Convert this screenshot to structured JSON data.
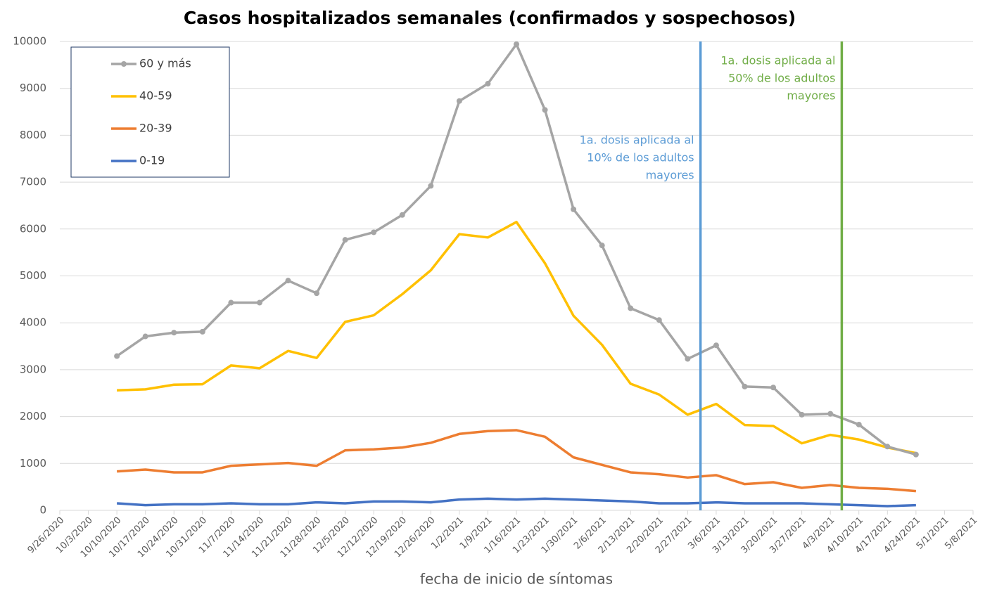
{
  "chart_data": {
    "type": "line",
    "title": "Casos hospitalizados semanales (confirmados y sospechosos)",
    "x_label": "fecha de inicio de síntomas",
    "categories": [
      "9/26/2020",
      "10/3/2020",
      "10/10/2020",
      "10/17/2020",
      "10/24/2020",
      "10/31/2020",
      "11/7/2020",
      "11/14/2020",
      "11/21/2020",
      "11/28/2020",
      "12/5/2020",
      "12/12/2020",
      "12/19/2020",
      "12/26/2020",
      "1/2/2021",
      "1/9/2021",
      "1/16/2021",
      "1/23/2021",
      "1/30/2021",
      "2/6/2021",
      "2/13/2021",
      "2/20/2021",
      "2/27/2021",
      "3/6/2021",
      "3/13/2021",
      "3/20/2021",
      "3/27/2021",
      "4/3/2021",
      "4/10/2021",
      "4/17/2021",
      "4/24/2021",
      "5/1/2021",
      "5/8/2021"
    ],
    "series": [
      {
        "name": "60 y más",
        "color": "#a5a5a5",
        "marker": true,
        "values": [
          null,
          null,
          3290,
          3710,
          3790,
          3810,
          4430,
          4430,
          4900,
          4630,
          5770,
          5930,
          6300,
          6920,
          8730,
          9100,
          9940,
          8540,
          6420,
          5650,
          4310,
          4060,
          3230,
          3520,
          2640,
          2620,
          2040,
          2060,
          1830,
          1360,
          1190,
          null,
          null
        ]
      },
      {
        "name": "40-59",
        "color": "#ffc000",
        "marker": false,
        "values": [
          null,
          null,
          2560,
          2580,
          2680,
          2690,
          3090,
          3030,
          3400,
          3250,
          4020,
          4160,
          4610,
          5120,
          5890,
          5820,
          6150,
          5270,
          4150,
          3530,
          2700,
          2470,
          2040,
          2270,
          1820,
          1800,
          1430,
          1610,
          1510,
          1340,
          1220,
          null,
          null
        ]
      },
      {
        "name": "20-39",
        "color": "#ed7d31",
        "marker": false,
        "values": [
          null,
          null,
          830,
          870,
          810,
          810,
          950,
          980,
          1010,
          950,
          1280,
          1300,
          1340,
          1440,
          1630,
          1690,
          1710,
          1570,
          1130,
          970,
          810,
          770,
          700,
          750,
          560,
          600,
          480,
          540,
          480,
          460,
          410,
          null,
          null
        ]
      },
      {
        "name": "0-19",
        "color": "#4472c4",
        "marker": false,
        "values": [
          null,
          null,
          150,
          110,
          130,
          130,
          150,
          130,
          130,
          170,
          150,
          190,
          190,
          170,
          230,
          250,
          230,
          250,
          230,
          210,
          190,
          150,
          150,
          170,
          150,
          150,
          150,
          130,
          110,
          90,
          110,
          null,
          null
        ]
      }
    ],
    "ylim": [
      0,
      10000
    ],
    "yticks": [
      0,
      1000,
      2000,
      3000,
      4000,
      5000,
      6000,
      7000,
      8000,
      9000,
      10000
    ],
    "grid": true,
    "legend": "upper left",
    "vlines": [
      {
        "x": 22.45,
        "color": "#5b9bd5",
        "text": [
          "1a. dosis aplicada al",
          "10% de los adultos",
          "mayores"
        ]
      },
      {
        "x": 27.4,
        "color": "#70ad47",
        "text": [
          "1a. dosis aplicada al",
          "50% de los adultos",
          "mayores"
        ]
      }
    ]
  }
}
